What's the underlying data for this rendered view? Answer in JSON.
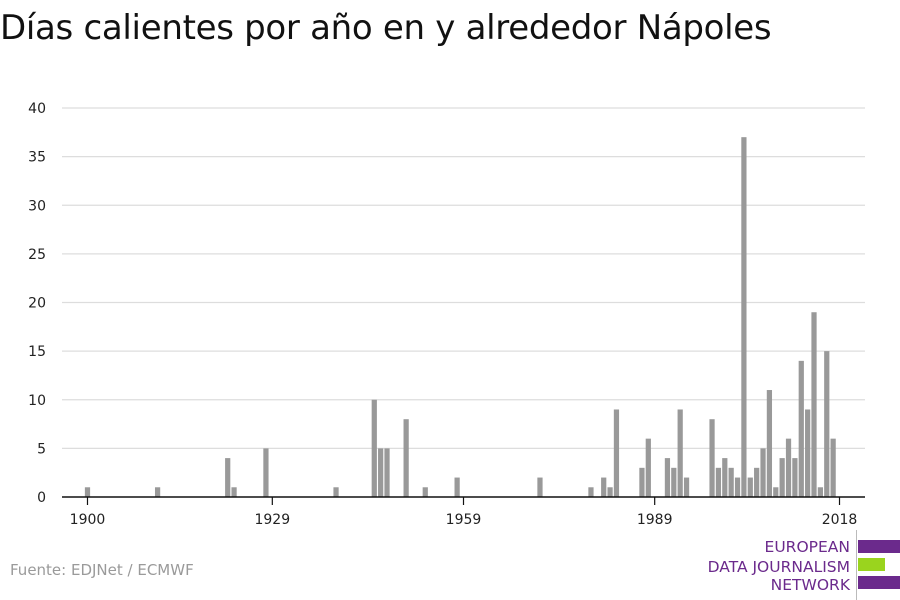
{
  "title": "Días calientes por año en y alrededor Nápoles",
  "source": "Fuente: EDJNet / ECMWF",
  "logo": {
    "lines": [
      "EUROPEAN",
      "DATA JOURNALISM",
      "NETWORK"
    ],
    "colors": {
      "purple": "#6b2a8c",
      "green": "#9ad41e"
    }
  },
  "chart_data": {
    "type": "bar",
    "title": "Días calientes por año en y alrededor Nápoles",
    "xlabel": "",
    "ylabel": "",
    "xlim": [
      1896,
      2022
    ],
    "ylim": [
      0,
      40
    ],
    "y_ticks": [
      0,
      5,
      10,
      15,
      20,
      25,
      30,
      35,
      40
    ],
    "x_ticks": [
      1900,
      1929,
      1959,
      1989,
      2018
    ],
    "grid": true,
    "bar_color": "#999999",
    "x": [
      1900,
      1911,
      1922,
      1923,
      1928,
      1939,
      1945,
      1946,
      1947,
      1950,
      1953,
      1958,
      1971,
      1979,
      1981,
      1982,
      1983,
      1987,
      1988,
      1991,
      1992,
      1993,
      1994,
      1998,
      1999,
      2000,
      2001,
      2002,
      2003,
      2004,
      2005,
      2006,
      2007,
      2008,
      2009,
      2010,
      2011,
      2012,
      2013,
      2014,
      2015,
      2016,
      2017,
      2018
    ],
    "values": [
      1,
      1,
      4,
      1,
      5,
      1,
      10,
      5,
      5,
      8,
      1,
      2,
      2,
      1,
      2,
      1,
      9,
      3,
      6,
      4,
      3,
      9,
      2,
      8,
      3,
      4,
      3,
      2,
      37,
      2,
      3,
      5,
      11,
      1,
      4,
      6,
      4,
      14,
      9,
      19,
      1,
      15,
      6,
      0
    ]
  }
}
